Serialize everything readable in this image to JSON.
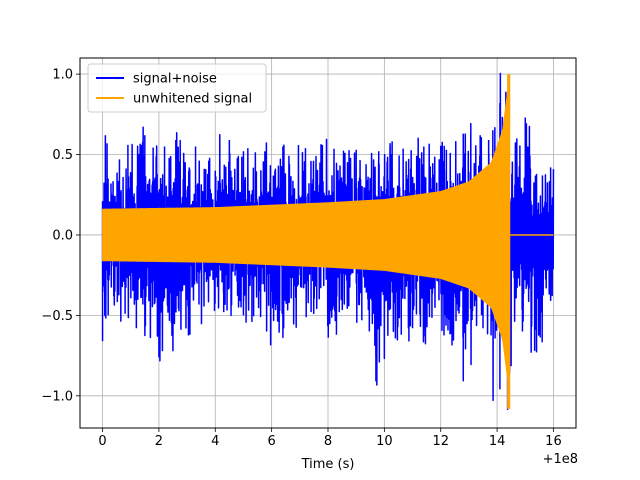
{
  "chart_data": {
    "type": "line",
    "xlabel": "Time (s)",
    "ylabel": "",
    "x_offset_label": "+1e8",
    "xlim": [
      -0.8,
      16.8
    ],
    "ylim": [
      -1.2,
      1.1
    ],
    "x_ticks": [
      0,
      2,
      4,
      6,
      8,
      10,
      12,
      14,
      16
    ],
    "x_tick_labels": [
      "0",
      "2",
      "4",
      "6",
      "8",
      "10",
      "12",
      "14",
      "16"
    ],
    "y_ticks": [
      -1.0,
      -0.5,
      0.0,
      0.5,
      1.0
    ],
    "y_tick_labels": [
      "−1.0",
      "−0.5",
      "0.0",
      "0.5",
      "1.0"
    ],
    "grid": true,
    "legend_position": "top-left",
    "series": [
      {
        "name": "signal+noise",
        "color": "#0000ff",
        "x_range": [
          0,
          16
        ],
        "peaks_positive": [
          {
            "x": 0.0,
            "y": 0.21
          },
          {
            "x": 0.1,
            "y": 0.62
          },
          {
            "x": 0.3,
            "y": 0.32
          },
          {
            "x": 0.6,
            "y": 0.47
          },
          {
            "x": 0.9,
            "y": 0.56
          },
          {
            "x": 1.5,
            "y": 0.62
          },
          {
            "x": 2.2,
            "y": 0.55
          },
          {
            "x": 2.6,
            "y": 0.59
          },
          {
            "x": 3.3,
            "y": 0.55
          },
          {
            "x": 3.8,
            "y": 0.48
          },
          {
            "x": 4.5,
            "y": 0.59
          },
          {
            "x": 5.0,
            "y": 0.52
          },
          {
            "x": 6.4,
            "y": 0.55
          },
          {
            "x": 7.2,
            "y": 0.54
          },
          {
            "x": 7.8,
            "y": 0.56
          },
          {
            "x": 8.6,
            "y": 0.51
          },
          {
            "x": 9.0,
            "y": 0.53
          },
          {
            "x": 9.8,
            "y": 0.52
          },
          {
            "x": 10.2,
            "y": 0.55
          },
          {
            "x": 11.4,
            "y": 0.55
          },
          {
            "x": 12.2,
            "y": 0.53
          },
          {
            "x": 12.8,
            "y": 0.63
          },
          {
            "x": 13.4,
            "y": 0.62
          },
          {
            "x": 13.7,
            "y": 0.59
          },
          {
            "x": 14.1,
            "y": 0.82
          },
          {
            "x": 14.7,
            "y": 0.6
          },
          {
            "x": 15.0,
            "y": 0.73
          },
          {
            "x": 15.4,
            "y": 0.38
          },
          {
            "x": 15.9,
            "y": 0.42
          }
        ],
        "peaks_negative": [
          {
            "x": 0.0,
            "y": -0.66
          },
          {
            "x": 0.2,
            "y": -0.5
          },
          {
            "x": 0.8,
            "y": -0.49
          },
          {
            "x": 1.2,
            "y": -0.58
          },
          {
            "x": 2.0,
            "y": -0.76
          },
          {
            "x": 3.1,
            "y": -0.62
          },
          {
            "x": 4.3,
            "y": -0.48
          },
          {
            "x": 5.0,
            "y": -0.5
          },
          {
            "x": 5.3,
            "y": -0.54
          },
          {
            "x": 6.4,
            "y": -0.64
          },
          {
            "x": 7.4,
            "y": -0.48
          },
          {
            "x": 8.3,
            "y": -0.62
          },
          {
            "x": 9.2,
            "y": -0.53
          },
          {
            "x": 9.7,
            "y": -0.91
          },
          {
            "x": 10.6,
            "y": -0.62
          },
          {
            "x": 11.0,
            "y": -0.58
          },
          {
            "x": 11.4,
            "y": -0.63
          },
          {
            "x": 12.8,
            "y": -0.91
          },
          {
            "x": 13.5,
            "y": -0.58
          },
          {
            "x": 14.1,
            "y": -0.96
          },
          {
            "x": 14.9,
            "y": -0.6
          },
          {
            "x": 15.4,
            "y": -0.73
          },
          {
            "x": 15.9,
            "y": -0.41
          }
        ]
      },
      {
        "name": "unwhitened signal",
        "color": "#ffa500",
        "x_range": [
          0,
          16
        ],
        "chirp_end_x": 14.45,
        "envelope": [
          {
            "x": 0,
            "y": 0.16
          },
          {
            "x": 4,
            "y": 0.17
          },
          {
            "x": 8,
            "y": 0.2
          },
          {
            "x": 10,
            "y": 0.22
          },
          {
            "x": 12,
            "y": 0.27
          },
          {
            "x": 13,
            "y": 0.33
          },
          {
            "x": 13.8,
            "y": 0.45
          },
          {
            "x": 14.2,
            "y": 0.65
          },
          {
            "x": 14.45,
            "y": 1.0
          }
        ],
        "peak_max": 1.0,
        "peak_min": -1.08,
        "post_merger_value": 0.0
      }
    ]
  }
}
